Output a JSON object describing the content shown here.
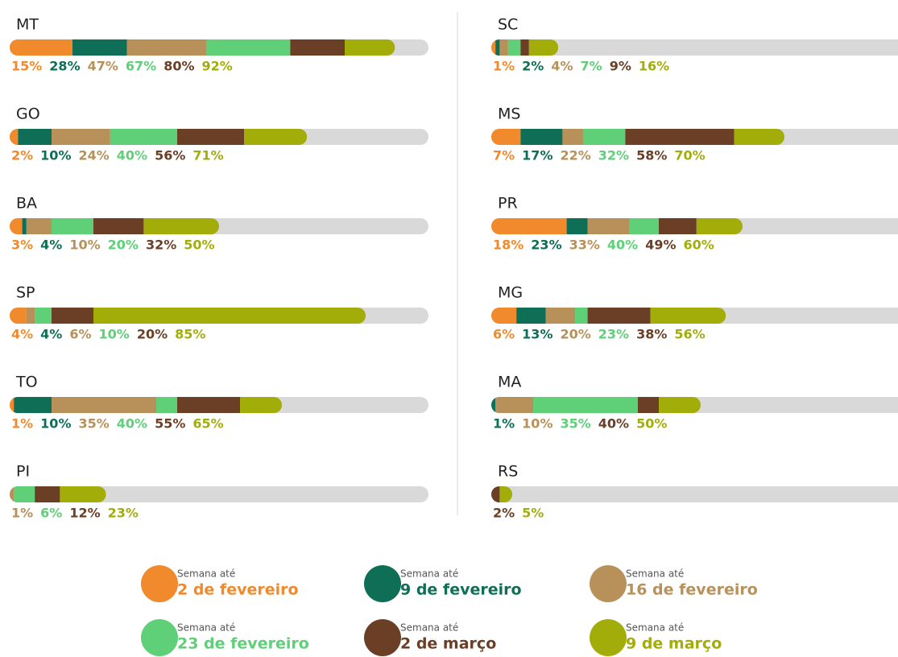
{
  "chart_data": {
    "type": "bar",
    "orientation": "horizontal",
    "xlim": [
      0,
      100
    ],
    "legend_prefix": "Semana até",
    "categories": [
      "MT",
      "GO",
      "BA",
      "SP",
      "TO",
      "PI",
      "SC",
      "MS",
      "PR",
      "MG",
      "MA",
      "RS"
    ],
    "series": [
      {
        "name": "2 de fevereiro",
        "color": "#f08a2c",
        "values": [
          15,
          2,
          3,
          4,
          1,
          null,
          1,
          7,
          18,
          6,
          null,
          null
        ],
        "value_labels": [
          "15%",
          "2%",
          "3%",
          "4%",
          "1%",
          null,
          "1%",
          "7%",
          "18%",
          "6%",
          null,
          null
        ]
      },
      {
        "name": "9 de fevereiro",
        "color": "#0f6e56",
        "values": [
          28,
          10,
          4,
          4,
          10,
          null,
          2,
          17,
          23,
          13,
          1,
          null
        ],
        "value_labels": [
          "28%",
          "10%",
          "4%",
          "4%",
          "10%",
          null,
          "2%",
          "17%",
          "23%",
          "13%",
          "1%",
          null
        ]
      },
      {
        "name": "16 de fevereiro",
        "color": "#b8915a",
        "values": [
          47,
          24,
          10,
          6,
          35,
          1,
          4,
          22,
          33,
          20,
          10,
          null
        ],
        "value_labels": [
          "47%",
          "24%",
          "10%",
          "6%",
          "35%",
          "1%",
          "4%",
          "22%",
          "33%",
          "20%",
          "10%",
          null
        ]
      },
      {
        "name": "23 de fevereiro",
        "color": "#5fcf78",
        "values": [
          67,
          40,
          20,
          10,
          40,
          6,
          7,
          32,
          40,
          23,
          35,
          null
        ],
        "value_labels": [
          "67%",
          "40%",
          "20%",
          "10%",
          "40%",
          "6%",
          "7%",
          "32%",
          "40%",
          "23%",
          "35%",
          null
        ]
      },
      {
        "name": "2 de março",
        "color": "#6b3f25",
        "values": [
          80,
          56,
          32,
          20,
          55,
          12,
          9,
          58,
          49,
          38,
          40,
          2
        ],
        "value_labels": [
          "80%",
          "56%",
          "32%",
          "20%",
          "55%",
          "12%",
          "9%",
          "58%",
          "49%",
          "38%",
          "40%",
          "2%"
        ]
      },
      {
        "name": "9 de março",
        "color": "#a3ad0a",
        "values": [
          92,
          71,
          50,
          85,
          65,
          23,
          16,
          70,
          60,
          56,
          50,
          5
        ],
        "value_labels": [
          "92%",
          "71%",
          "50%",
          "85%",
          "65%",
          "23%",
          "16%",
          "70%",
          "60%",
          "56%",
          "50%",
          "5%"
        ]
      }
    ]
  }
}
